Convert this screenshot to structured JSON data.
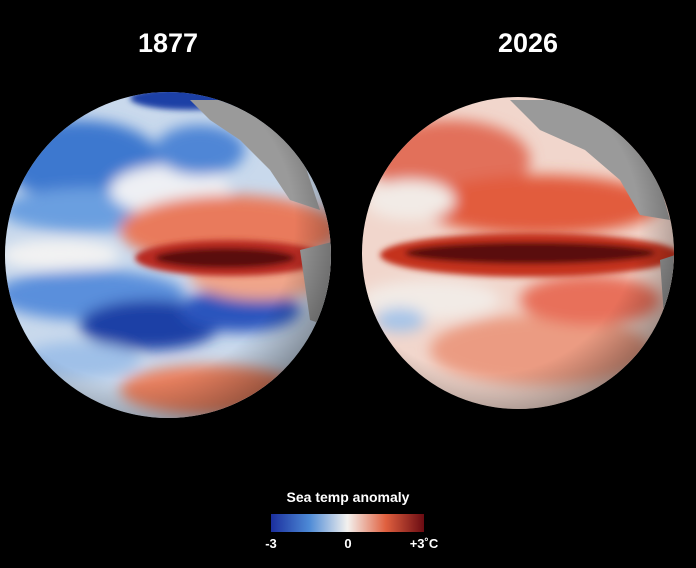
{
  "maps": [
    {
      "title": "1877"
    },
    {
      "title": "2026"
    }
  ],
  "legend": {
    "title": "Sea temp anomaly",
    "labels": [
      "-3",
      "0",
      "+3˚C"
    ]
  }
}
